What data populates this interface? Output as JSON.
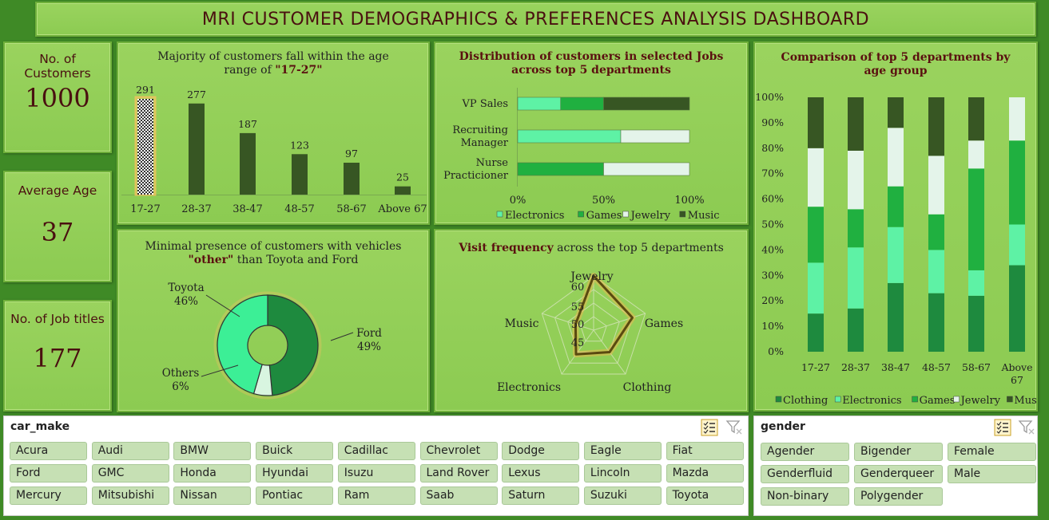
{
  "dashboard": {
    "title": "MRI CUSTOMER DEMOGRAPHICS & PREFERENCES ANALYSIS DASHBOARD"
  },
  "kpis": [
    {
      "label": "No. of Customers",
      "value": "1000"
    },
    {
      "label": "Average Age",
      "value": "37"
    },
    {
      "label": "No. of Job titles",
      "value": "177"
    }
  ],
  "chart_data": [
    {
      "type": "bar",
      "title_plain": "Majority of customers fall within the age range of ",
      "title_bold": "\"17-27\"",
      "categories": [
        "17-27",
        "28-37",
        "38-47",
        "48-57",
        "58-67",
        "Above 67"
      ],
      "values": [
        291,
        277,
        187,
        123,
        97,
        25
      ],
      "highlight_category": "17-27",
      "colors": {
        "bar": "#375623",
        "highlight": "#f5c060"
      }
    },
    {
      "type": "bar",
      "orientation": "horizontal",
      "stacked": "percent",
      "title": "Distribution of customers in selected Jobs across top 5 departments",
      "categories": [
        "VP Sales",
        "Recruiting Manager",
        "Nurse Practicioner"
      ],
      "category_lines": [
        [
          "VP Sales"
        ],
        [
          "Recruiting",
          "Manager"
        ],
        [
          "Nurse",
          "Practicioner"
        ]
      ],
      "xticks": [
        "0%",
        "50%",
        "100%"
      ],
      "series": [
        {
          "name": "Electronics",
          "color": "#5ef2a5",
          "values": [
            25,
            60,
            0
          ]
        },
        {
          "name": "Games",
          "color": "#20b040",
          "values": [
            25,
            0,
            50
          ]
        },
        {
          "name": "Jewelry",
          "color": "#e4f4ea",
          "values": [
            0,
            40,
            50
          ]
        },
        {
          "name": "Music",
          "color": "#375623",
          "values": [
            50,
            0,
            0
          ]
        }
      ]
    },
    {
      "type": "bar",
      "stacked": "percent",
      "title": "Comparison of top 5 departments by age group",
      "categories": [
        "17-27",
        "28-37",
        "38-47",
        "48-57",
        "58-67",
        "Above 67"
      ],
      "category_lines": [
        [
          "17-27"
        ],
        [
          "28-37"
        ],
        [
          "38-47"
        ],
        [
          "48-57"
        ],
        [
          "58-67"
        ],
        [
          "Above",
          "67"
        ]
      ],
      "yticks": [
        "0%",
        "10%",
        "20%",
        "30%",
        "40%",
        "50%",
        "60%",
        "70%",
        "80%",
        "90%",
        "100%"
      ],
      "series": [
        {
          "name": "Clothing",
          "color": "#1e8a3e",
          "values": [
            15,
            17,
            27,
            23,
            22,
            34
          ]
        },
        {
          "name": "Electronics",
          "color": "#5ef2a5",
          "values": [
            20,
            24,
            22,
            17,
            10,
            16
          ]
        },
        {
          "name": "Games",
          "color": "#20b040",
          "values": [
            22,
            15,
            16,
            14,
            40,
            33
          ]
        },
        {
          "name": "Jewelry",
          "color": "#e4f4ea",
          "values": [
            23,
            23,
            23,
            23,
            11,
            17
          ]
        },
        {
          "name": "Music",
          "color": "#375623",
          "values": [
            20,
            21,
            12,
            23,
            17,
            0
          ]
        }
      ]
    },
    {
      "type": "pie",
      "variant": "doughnut",
      "title_plain_1": "Minimal presence of customers with vehicles ",
      "title_bold": "\"other\"",
      "title_plain_2": " than Toyota and Ford",
      "slices": [
        {
          "name": "Ford",
          "value": 49,
          "label": "49%",
          "color": "#1e8a3e"
        },
        {
          "name": "Others",
          "value": 6,
          "label": "6%",
          "color": "#d8f5e0"
        },
        {
          "name": "Toyota",
          "value": 46,
          "label": "46%",
          "color": "#3cef96"
        }
      ]
    },
    {
      "type": "line",
      "variant": "radar",
      "title_bold": "Visit frequency",
      "title_plain": " across the top 5 departments",
      "categories": [
        "Jewelry",
        "Games",
        "Clothing",
        "Electronics",
        "Music"
      ],
      "values": [
        60,
        55,
        50,
        51,
        47
      ],
      "ticks": [
        "45",
        "50",
        "55",
        "60"
      ],
      "range": [
        40,
        60
      ],
      "colors": {
        "line": "#5a4a10",
        "glow": "#e8b850"
      }
    }
  ],
  "slicers": {
    "car_make": {
      "header": "car_make",
      "items": [
        "Acura",
        "Audi",
        "BMW",
        "Buick",
        "Cadillac",
        "Chevrolet",
        "Dodge",
        "Eagle",
        "Fiat",
        "Ford",
        "GMC",
        "Honda",
        "Hyundai",
        "Isuzu",
        "Land Rover",
        "Lexus",
        "Lincoln",
        "Mazda",
        "Mercury",
        "Mitsubishi",
        "Nissan",
        "Pontiac",
        "Ram",
        "Saab",
        "Saturn",
        "Suzuki",
        "Toyota"
      ]
    },
    "gender": {
      "header": "gender",
      "items": [
        "Agender",
        "Bigender",
        "Female",
        "Genderfluid",
        "Genderqueer",
        "Male",
        "Non-binary",
        "Polygender"
      ]
    }
  }
}
